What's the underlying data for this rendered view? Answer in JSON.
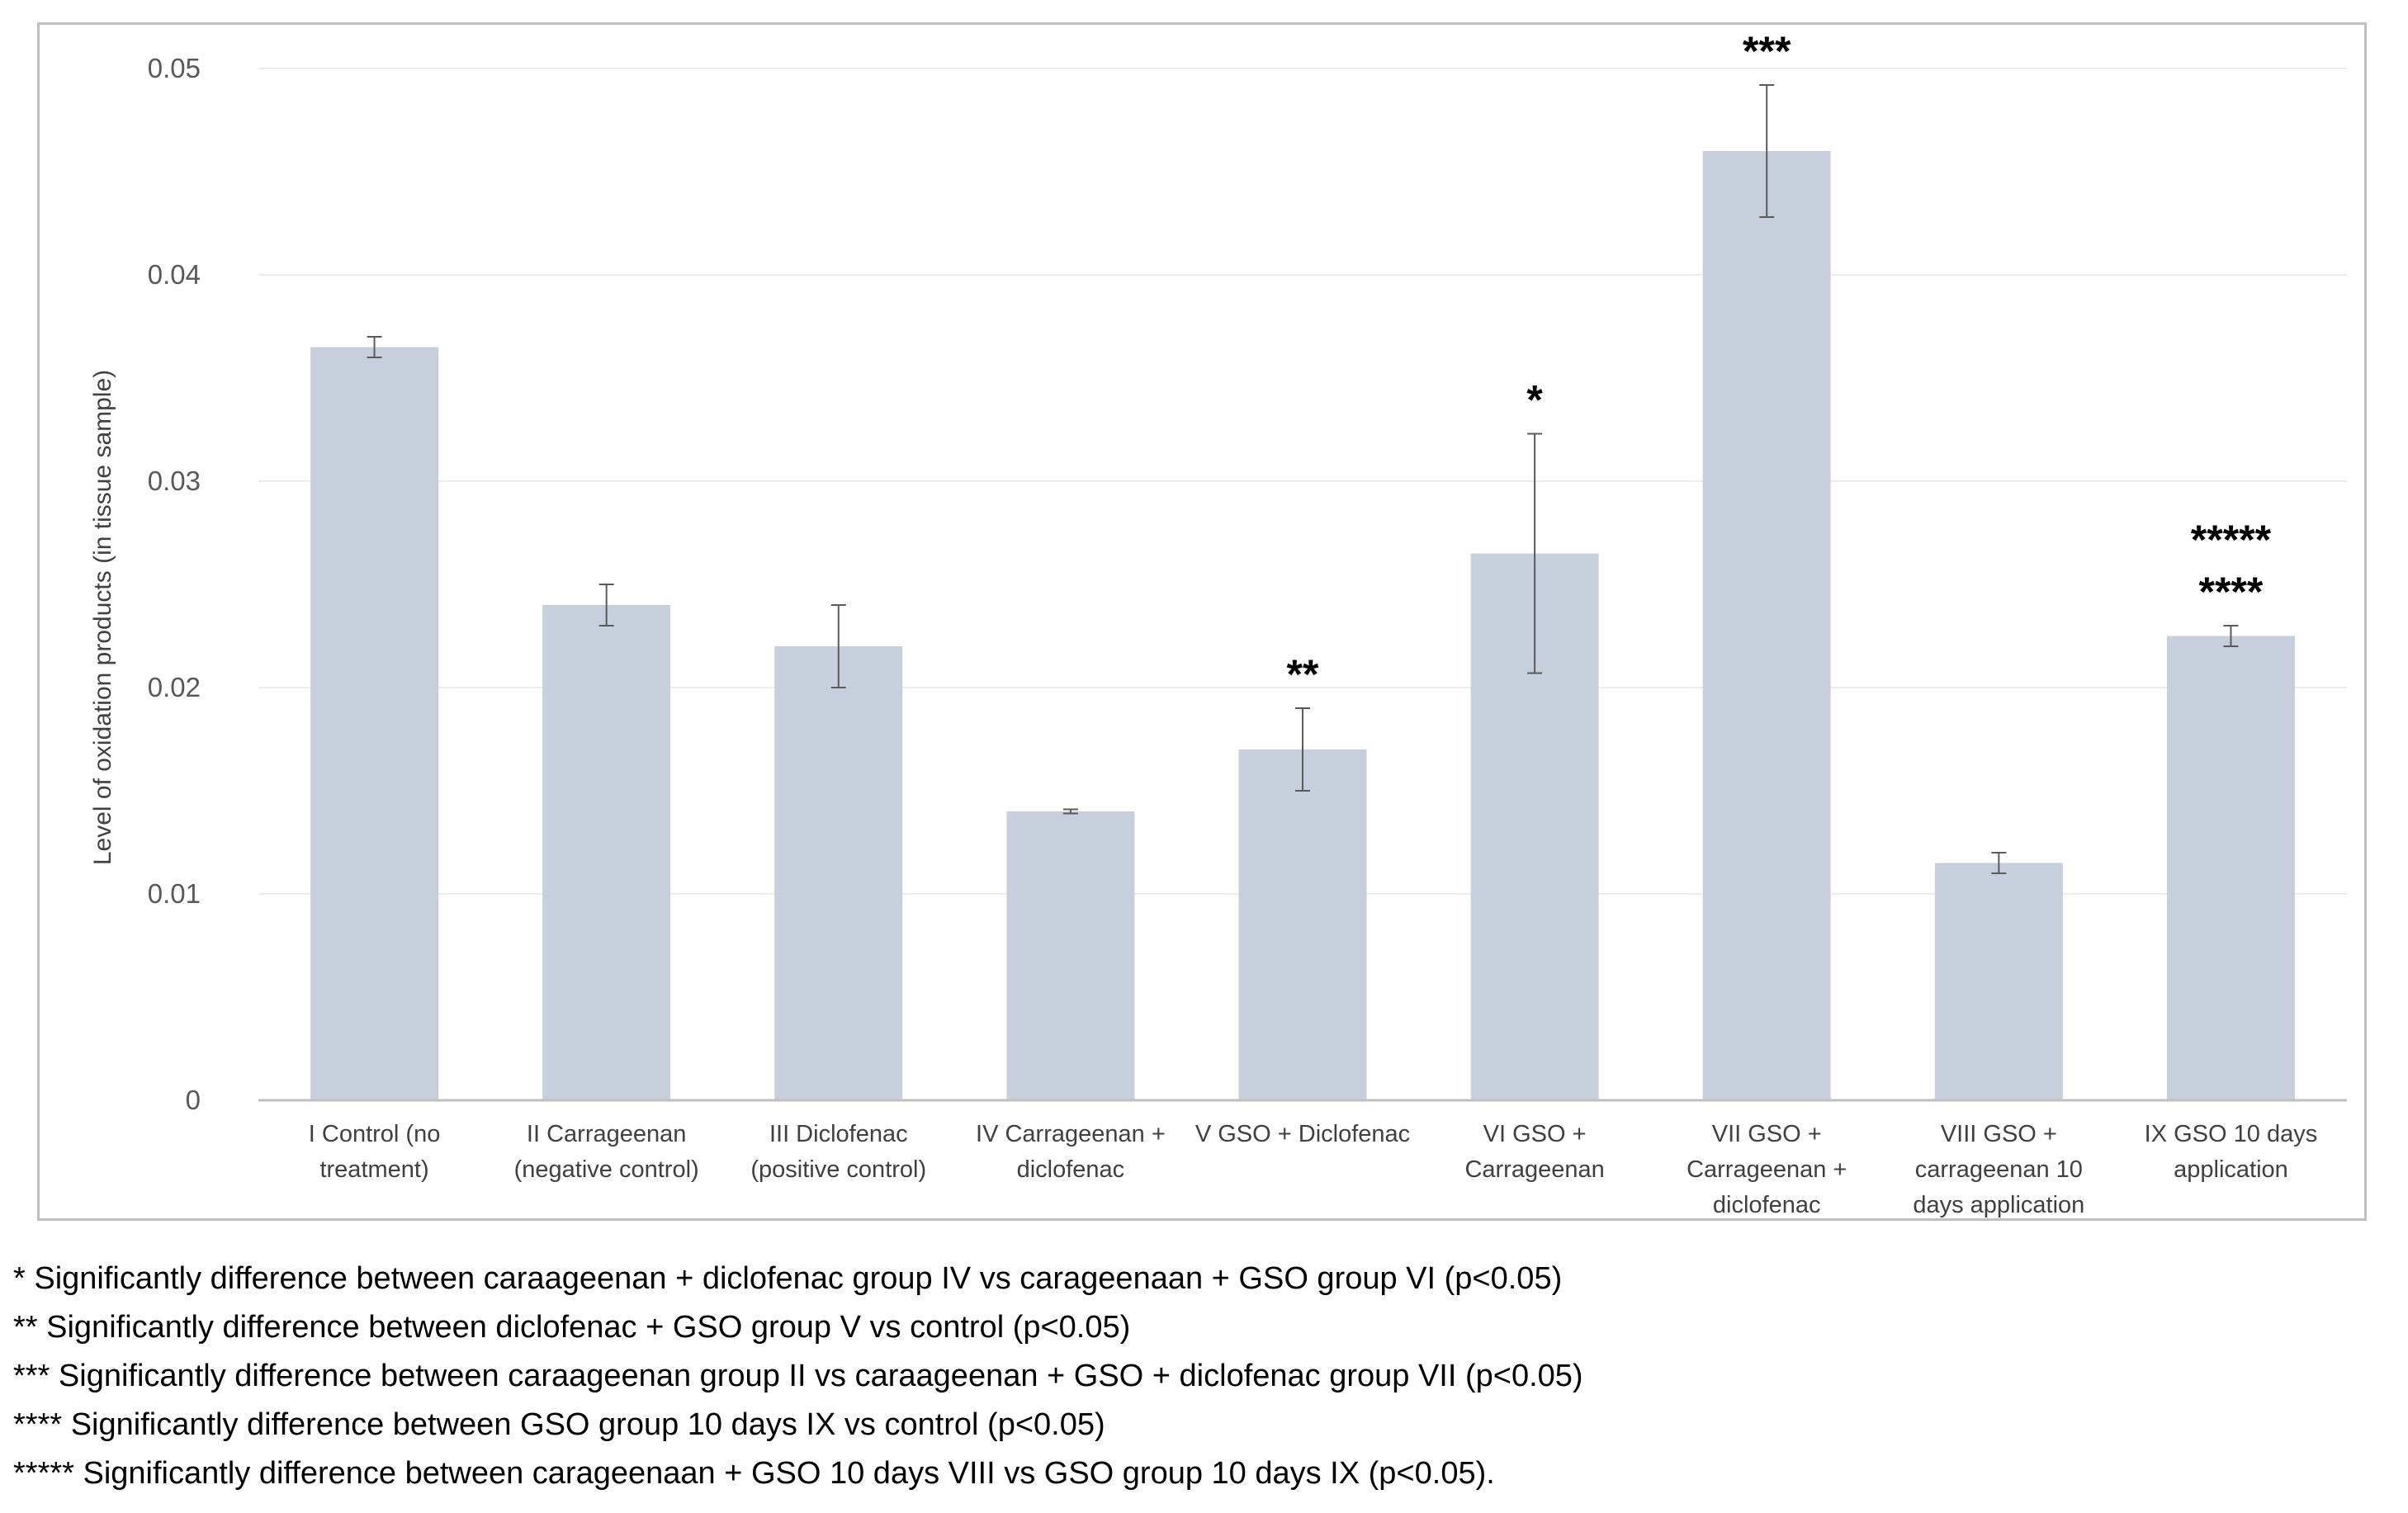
{
  "chart_data": {
    "type": "bar",
    "title": "",
    "xlabel": "",
    "ylabel": "Level of oxidation products (in tissue sample)",
    "ylim": [
      0,
      0.05
    ],
    "yticks": [
      "0",
      "0.01",
      "0.02",
      "0.03",
      "0.04",
      "0.05"
    ],
    "grid": true,
    "bar_color": "#c8cfdc",
    "categories": [
      [
        "I Control (no",
        "treatment)"
      ],
      [
        "II Carrageenan",
        "(negative control)"
      ],
      [
        "III Diclofenac",
        "(positive control)"
      ],
      [
        "IV Carrageenan  +",
        "diclofenac"
      ],
      [
        "V GSO + Diclofenac"
      ],
      [
        "VI GSO +",
        "Carrageenan"
      ],
      [
        "VII GSO +",
        "Carrageenan  +",
        "diclofenac"
      ],
      [
        "VIII GSO +",
        "carrageenan  10",
        "days application"
      ],
      [
        "IX GSO 10 days",
        "application"
      ]
    ],
    "values": [
      0.0365,
      0.024,
      0.022,
      0.014,
      0.017,
      0.0265,
      0.046,
      0.0115,
      0.0225
    ],
    "error": [
      0.0005,
      0.001,
      0.002,
      0.0001,
      0.002,
      0.0058,
      0.0032,
      0.0005,
      0.0005
    ],
    "significance": [
      [],
      [],
      [],
      [],
      [
        "**"
      ],
      [
        "*"
      ],
      [
        "***"
      ],
      [],
      [
        "*****",
        "****"
      ]
    ]
  },
  "footnotes": [
    "* Significantly difference between caraageenan + diclofenac group IV vs carageenaan + GSO group VI (p<0.05)",
    "** Significantly difference between diclofenac + GSO group V vs control (p<0.05)",
    "*** Significantly difference between caraageenan group II vs caraageenan + GSO + diclofenac group VII (p<0.05)",
    "**** Significantly difference between GSO group 10 days IX vs control (p<0.05)",
    "***** Significantly difference between carageenaan + GSO 10 days VIII vs GSO group 10 days IX (p<0.05)."
  ]
}
